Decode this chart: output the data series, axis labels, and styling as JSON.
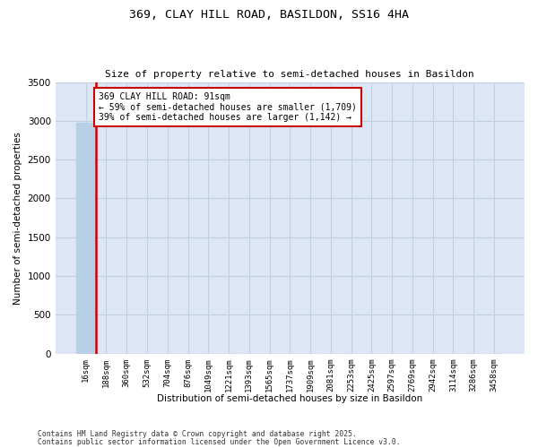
{
  "title_line1": "369, CLAY HILL ROAD, BASILDON, SS16 4HA",
  "title_line2": "Size of property relative to semi-detached houses in Basildon",
  "xlabel": "Distribution of semi-detached houses by size in Basildon",
  "ylabel": "Number of semi-detached properties",
  "bin_labels": [
    "16sqm",
    "188sqm",
    "360sqm",
    "532sqm",
    "704sqm",
    "876sqm",
    "1049sqm",
    "1221sqm",
    "1393sqm",
    "1565sqm",
    "1737sqm",
    "1909sqm",
    "2081sqm",
    "2253sqm",
    "2425sqm",
    "2597sqm",
    "2769sqm",
    "2942sqm",
    "3114sqm",
    "3286sqm",
    "3458sqm"
  ],
  "bar_values": [
    2980,
    2,
    1,
    0,
    0,
    0,
    0,
    0,
    0,
    0,
    0,
    0,
    0,
    0,
    0,
    0,
    0,
    0,
    0,
    0,
    0
  ],
  "bar_color": "#b8cfe8",
  "annotation_text": "369 CLAY HILL ROAD: 91sqm\n← 59% of semi-detached houses are smaller (1,709)\n39% of semi-detached houses are larger (1,142) →",
  "annotation_box_color": "#ffffff",
  "annotation_box_edge": "#cc0000",
  "property_line_color": "#cc0000",
  "ylim": [
    0,
    3500
  ],
  "yticks": [
    0,
    500,
    1000,
    1500,
    2000,
    2500,
    3000,
    3500
  ],
  "footer_line1": "Contains HM Land Registry data © Crown copyright and database right 2025.",
  "footer_line2": "Contains public sector information licensed under the Open Government Licence v3.0.",
  "bg_color": "#ffffff",
  "plot_bg_color": "#dce6f5",
  "grid_color": "#c0cfe0"
}
